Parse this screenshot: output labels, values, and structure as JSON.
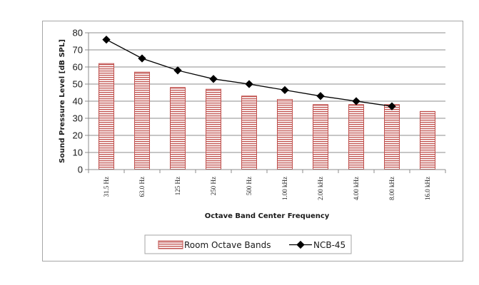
{
  "chart_data": {
    "type": "bar",
    "title": "",
    "xlabel": "Octave Band Center Frequency",
    "ylabel": "Sound Pressure Level [dB SPL]",
    "ylim": [
      0,
      80
    ],
    "yticks": [
      0,
      10,
      20,
      30,
      40,
      50,
      60,
      70,
      80
    ],
    "grid": true,
    "legend_position": "bottom",
    "categories": [
      "31.5 Hz",
      "63.0 Hz",
      "125 Hz",
      "250 Hz",
      "500 Hz",
      "1.00 kHz",
      "2.00 kHz",
      "4.00 kHz",
      "8.00 kHz",
      "16.0 kHz"
    ],
    "series": [
      {
        "name": "Room Octave Bands",
        "type": "bar",
        "values": [
          62,
          57,
          48,
          47,
          43,
          41,
          38,
          38,
          38,
          34
        ],
        "color": "#c0504d"
      },
      {
        "name": "NCB-45",
        "type": "line",
        "values": [
          76,
          65,
          58,
          53,
          50,
          46.5,
          43,
          40,
          37,
          null
        ],
        "color": "#000000"
      }
    ]
  }
}
